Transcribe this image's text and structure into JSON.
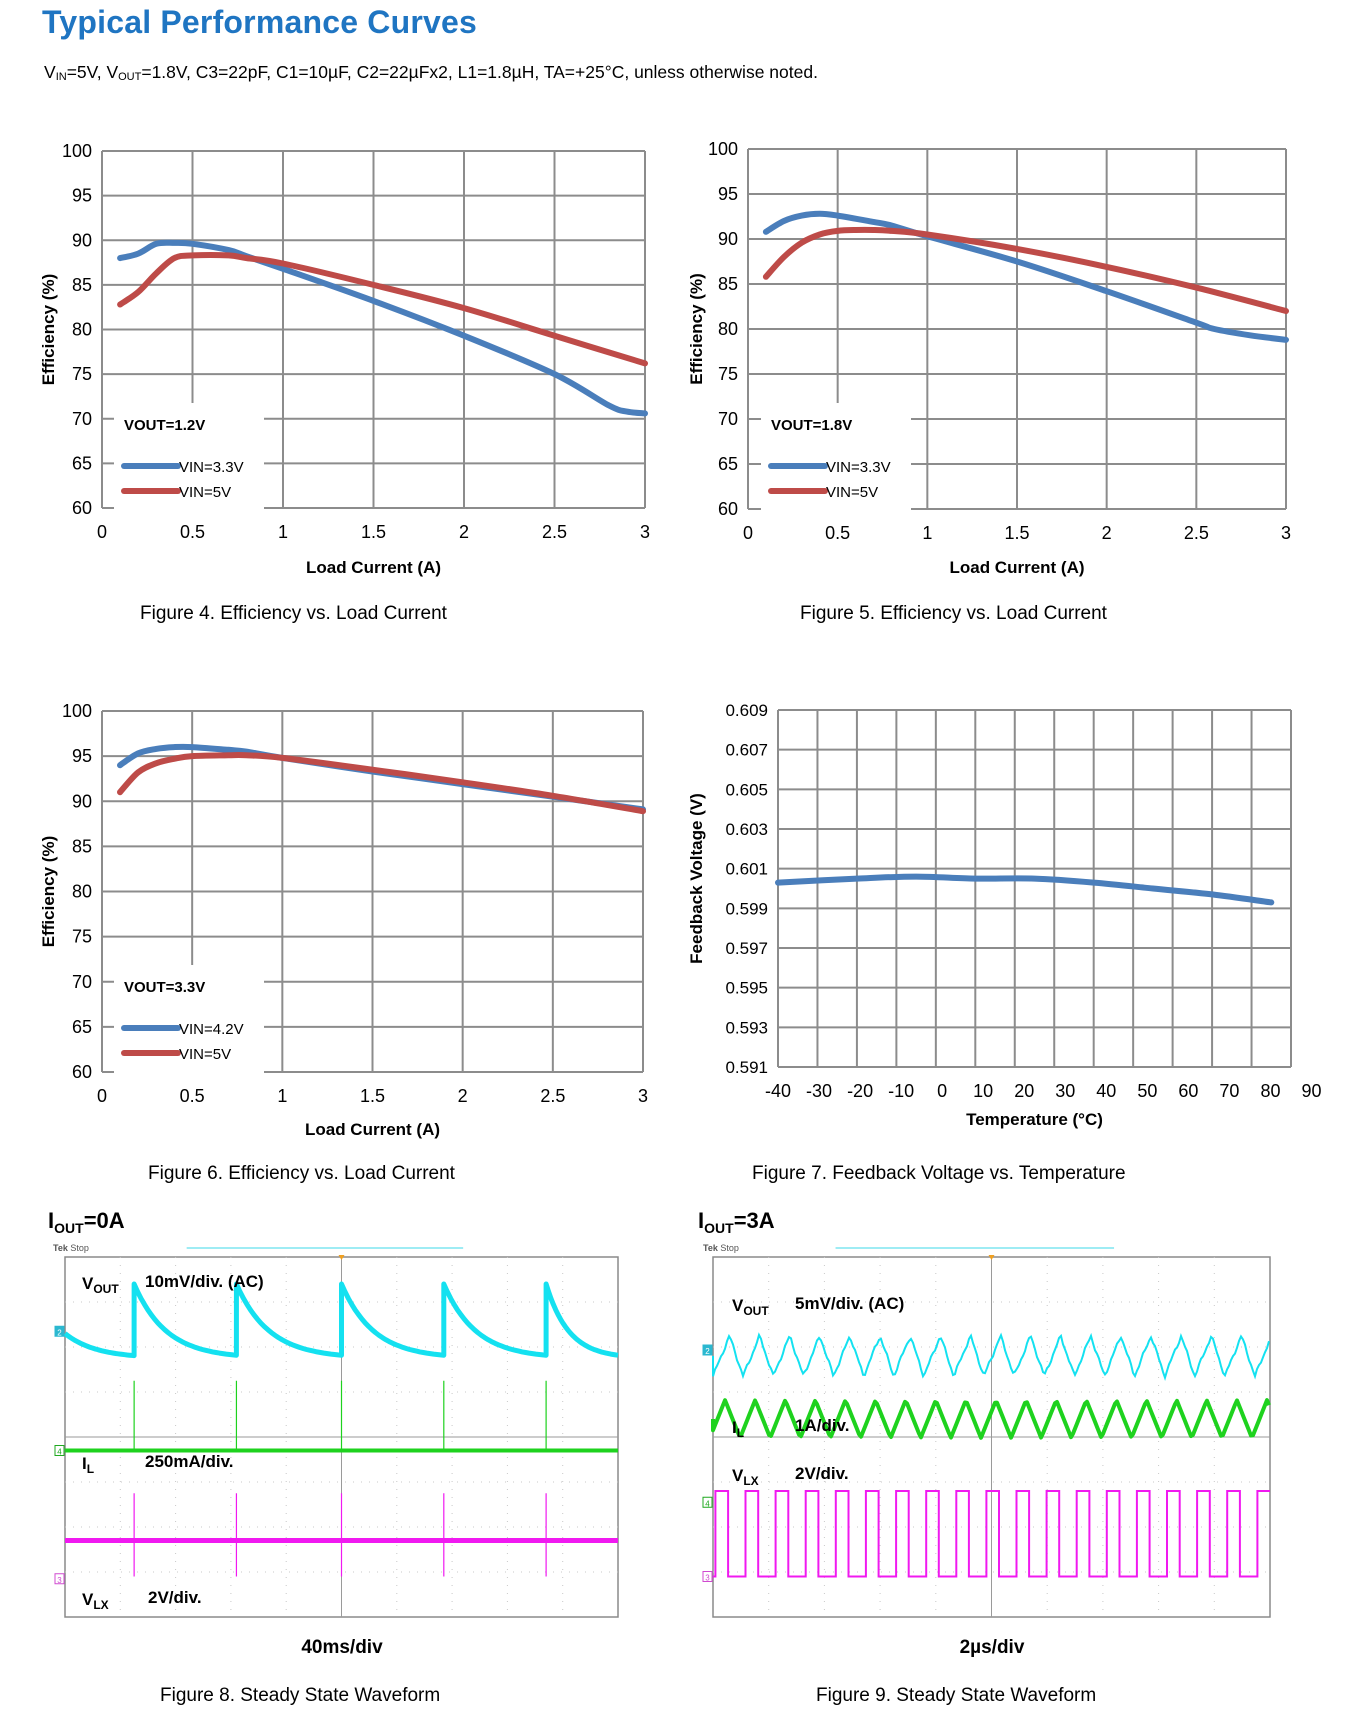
{
  "page": {
    "title": "Typical Performance Curves",
    "conditions": {
      "vin_label": "V",
      "vin_sub": "IN",
      "vin_rest": "=5V, ",
      "vout_label": "V",
      "vout_sub": "OUT",
      "rest": "=1.8V, C3=22pF, C1=10µF, C2=22µFx2, L1=1.8µH, TA=+25°C, unless otherwise noted."
    }
  },
  "colors": {
    "title": "#1f75c2",
    "series_blue": "#4a7ebb",
    "series_red": "#be4b48",
    "grid": "#8c8c8c",
    "scope_cyan": "#14e1f0",
    "scope_green": "#1ed21e",
    "scope_magenta": "#f019f0"
  },
  "chart_data": [
    {
      "id": "fig4",
      "type": "line",
      "title": "",
      "caption": "Figure 4. Efficiency vs. Load Current",
      "xlabel": "Load Current (A)",
      "ylabel": "Efficiency (%)",
      "xlim": [
        0,
        3
      ],
      "ylim": [
        60,
        100
      ],
      "xticks": [
        0,
        0.5,
        1,
        1.5,
        2,
        2.5,
        3
      ],
      "xtick_labels": [
        "0",
        "0.5",
        "1",
        "1.5",
        "2",
        "2.5",
        "3"
      ],
      "yticks": [
        60,
        65,
        70,
        75,
        80,
        85,
        90,
        95,
        100
      ],
      "ytick_labels": [
        "60",
        "65",
        "70",
        "75",
        "80",
        "85",
        "90",
        "95",
        "100"
      ],
      "grid": true,
      "legend_title": "VOUT=1.2V",
      "legend_position": "bottom-left",
      "series": [
        {
          "name": "VIN=3.3V",
          "color": "#4a7ebb",
          "x": [
            0.1,
            0.2,
            0.3,
            0.4,
            0.5,
            0.7,
            0.8,
            1.0,
            1.5,
            2.0,
            2.5,
            2.8,
            2.9,
            3.0
          ],
          "y": [
            88.0,
            88.5,
            89.6,
            89.7,
            89.6,
            88.9,
            88.2,
            86.8,
            83.2,
            79.3,
            75.0,
            71.5,
            70.8,
            70.6
          ]
        },
        {
          "name": "VIN=5V",
          "color": "#be4b48",
          "x": [
            0.1,
            0.2,
            0.3,
            0.4,
            0.5,
            0.7,
            0.8,
            1.0,
            1.5,
            2.0,
            2.5,
            3.0
          ],
          "y": [
            82.8,
            84.2,
            86.3,
            88.0,
            88.3,
            88.3,
            88.0,
            87.4,
            85.0,
            82.4,
            79.3,
            76.2
          ]
        }
      ]
    },
    {
      "id": "fig5",
      "type": "line",
      "title": "",
      "caption": "Figure 5. Efficiency vs. Load Current",
      "xlabel": "Load Current (A)",
      "ylabel": "Efficiency (%)",
      "xlim": [
        0,
        3
      ],
      "ylim": [
        60,
        100
      ],
      "xticks": [
        0,
        0.5,
        1,
        1.5,
        2,
        2.5,
        3
      ],
      "xtick_labels": [
        "0",
        "0.5",
        "1",
        "1.5",
        "2",
        "2.5",
        "3"
      ],
      "yticks": [
        60,
        65,
        70,
        75,
        80,
        85,
        90,
        95,
        100
      ],
      "ytick_labels": [
        "60",
        "65",
        "70",
        "75",
        "80",
        "85",
        "90",
        "95",
        "100"
      ],
      "grid": true,
      "legend_title": "VOUT=1.8V",
      "legend_position": "bottom-left",
      "series": [
        {
          "name": "VIN=3.3V",
          "color": "#4a7ebb",
          "x": [
            0.1,
            0.2,
            0.3,
            0.4,
            0.5,
            0.7,
            0.8,
            1.0,
            1.5,
            2.0,
            2.5,
            2.6,
            2.8,
            3.0
          ],
          "y": [
            90.8,
            92.0,
            92.6,
            92.8,
            92.6,
            91.9,
            91.5,
            90.3,
            87.5,
            84.2,
            80.7,
            80.0,
            79.3,
            78.8
          ]
        },
        {
          "name": "VIN=5V",
          "color": "#be4b48",
          "x": [
            0.1,
            0.2,
            0.3,
            0.4,
            0.5,
            0.6,
            0.7,
            0.8,
            1.0,
            1.5,
            2.0,
            2.5,
            3.0
          ],
          "y": [
            85.8,
            88.0,
            89.6,
            90.5,
            90.9,
            91.0,
            91.0,
            90.9,
            90.5,
            88.9,
            86.9,
            84.6,
            82.0
          ]
        }
      ]
    },
    {
      "id": "fig6",
      "type": "line",
      "title": "",
      "caption": "Figure 6. Efficiency vs. Load Current",
      "xlabel": "Load Current (A)",
      "ylabel": "Efficiency (%)",
      "xlim": [
        0,
        3
      ],
      "ylim": [
        60,
        100
      ],
      "xticks": [
        0,
        0.5,
        1,
        1.5,
        2,
        2.5,
        3
      ],
      "xtick_labels": [
        "0",
        "0.5",
        "1",
        "1.5",
        "2",
        "2.5",
        "3"
      ],
      "yticks": [
        60,
        65,
        70,
        75,
        80,
        85,
        90,
        95,
        100
      ],
      "ytick_labels": [
        "60",
        "65",
        "70",
        "75",
        "80",
        "85",
        "90",
        "95",
        "100"
      ],
      "grid": true,
      "legend_title": "VOUT=3.3V",
      "legend_position": "bottom-left",
      "series": [
        {
          "name": "VIN=4.2V",
          "color": "#4a7ebb",
          "x": [
            0.1,
            0.2,
            0.3,
            0.4,
            0.5,
            0.7,
            0.8,
            1.0,
            1.5,
            2.0,
            2.5,
            3.0
          ],
          "y": [
            94.0,
            95.3,
            95.8,
            96.0,
            96.0,
            95.7,
            95.5,
            94.8,
            93.3,
            91.9,
            90.5,
            89.1
          ]
        },
        {
          "name": "VIN=5V",
          "color": "#be4b48",
          "x": [
            0.1,
            0.2,
            0.3,
            0.4,
            0.5,
            0.7,
            0.8,
            1.0,
            1.5,
            2.0,
            2.5,
            3.0
          ],
          "y": [
            91.0,
            93.2,
            94.2,
            94.7,
            95.0,
            95.1,
            95.1,
            94.8,
            93.5,
            92.1,
            90.6,
            88.9
          ]
        }
      ]
    },
    {
      "id": "fig7",
      "type": "line",
      "title": "",
      "caption": "Figure 7. Feedback Voltage vs. Temperature",
      "xlabel": "Temperature (°C)",
      "ylabel": "Feedback  Voltage (V)",
      "xlim": [
        -40,
        90
      ],
      "ylim": [
        0.591,
        0.609
      ],
      "xticks": [
        -40,
        -30,
        -20,
        -10,
        0,
        10,
        20,
        30,
        40,
        50,
        60,
        70,
        80,
        90
      ],
      "xtick_labels": [
        "-40",
        "-30",
        "-20",
        "-10",
        "0",
        "10",
        "20",
        "30",
        "40",
        "50",
        "60",
        "70",
        "80",
        "90"
      ],
      "yticks": [
        0.591,
        0.593,
        0.595,
        0.597,
        0.599,
        0.601,
        0.603,
        0.605,
        0.607,
        0.609
      ],
      "ytick_labels": [
        "0.591",
        "0.593",
        "0.595",
        "0.597",
        "0.599",
        "0.601",
        "0.603",
        "0.605",
        "0.607",
        "0.609"
      ],
      "minor_y_gridlines": false,
      "grid": true,
      "series": [
        {
          "name": "Feedback Voltage",
          "color": "#4a7ebb",
          "x": [
            -40,
            -20,
            -5,
            10,
            25,
            40,
            55,
            70,
            85
          ],
          "y": [
            0.6003,
            0.6005,
            0.6006,
            0.6005,
            0.6005,
            0.6003,
            0.6,
            0.5997,
            0.5993
          ]
        }
      ]
    },
    {
      "id": "fig8",
      "type": "line",
      "subtype": "oscilloscope",
      "caption": "Figure 8. Steady State Waveform",
      "condition_main": "I",
      "condition_sub": "OUT",
      "condition_rest": "=0A",
      "scope_header": {
        "brand": "Tek",
        "state": "Stop"
      },
      "timebase": "40ms/div",
      "channels": [
        {
          "name": "V",
          "sub": "OUT",
          "scale": "10mV/div. (AC)",
          "marker": "2",
          "color": "#14e1f0",
          "waveform": "sawtooth-decay",
          "pulses_div": [
            1.25,
            3.1,
            5.0,
            6.85,
            8.7
          ]
        },
        {
          "name": "I",
          "sub": "L",
          "scale": "250mA/div.",
          "marker": "4",
          "color": "#1ed21e",
          "waveform": "flat-with-spikes"
        },
        {
          "name": "V",
          "sub": "LX",
          "scale": "2V/div.",
          "marker": "3",
          "color": "#f019f0",
          "waveform": "flat-with-spikes"
        }
      ]
    },
    {
      "id": "fig9",
      "type": "line",
      "subtype": "oscilloscope",
      "caption": "Figure 9. Steady State Waveform",
      "condition_main": "I",
      "condition_sub": "OUT",
      "condition_rest": "=3A",
      "scope_header": {
        "brand": "Tek",
        "state": "Stop"
      },
      "timebase": "2µs/div",
      "channels": [
        {
          "name": "V",
          "sub": "OUT",
          "scale": "5mV/div. (AC)",
          "marker": "2",
          "color": "#14e1f0",
          "waveform": "triangle-ripple",
          "cycles": 18.5
        },
        {
          "name": "I",
          "sub": "L",
          "scale": "1A/div.",
          "marker": "4",
          "color": "#1ed21e",
          "waveform": "triangle",
          "cycles": 18.5
        },
        {
          "name": "V",
          "sub": "LX",
          "scale": "2V/div.",
          "marker": "3",
          "color": "#f019f0",
          "waveform": "square",
          "cycles": 18.5
        }
      ]
    }
  ]
}
